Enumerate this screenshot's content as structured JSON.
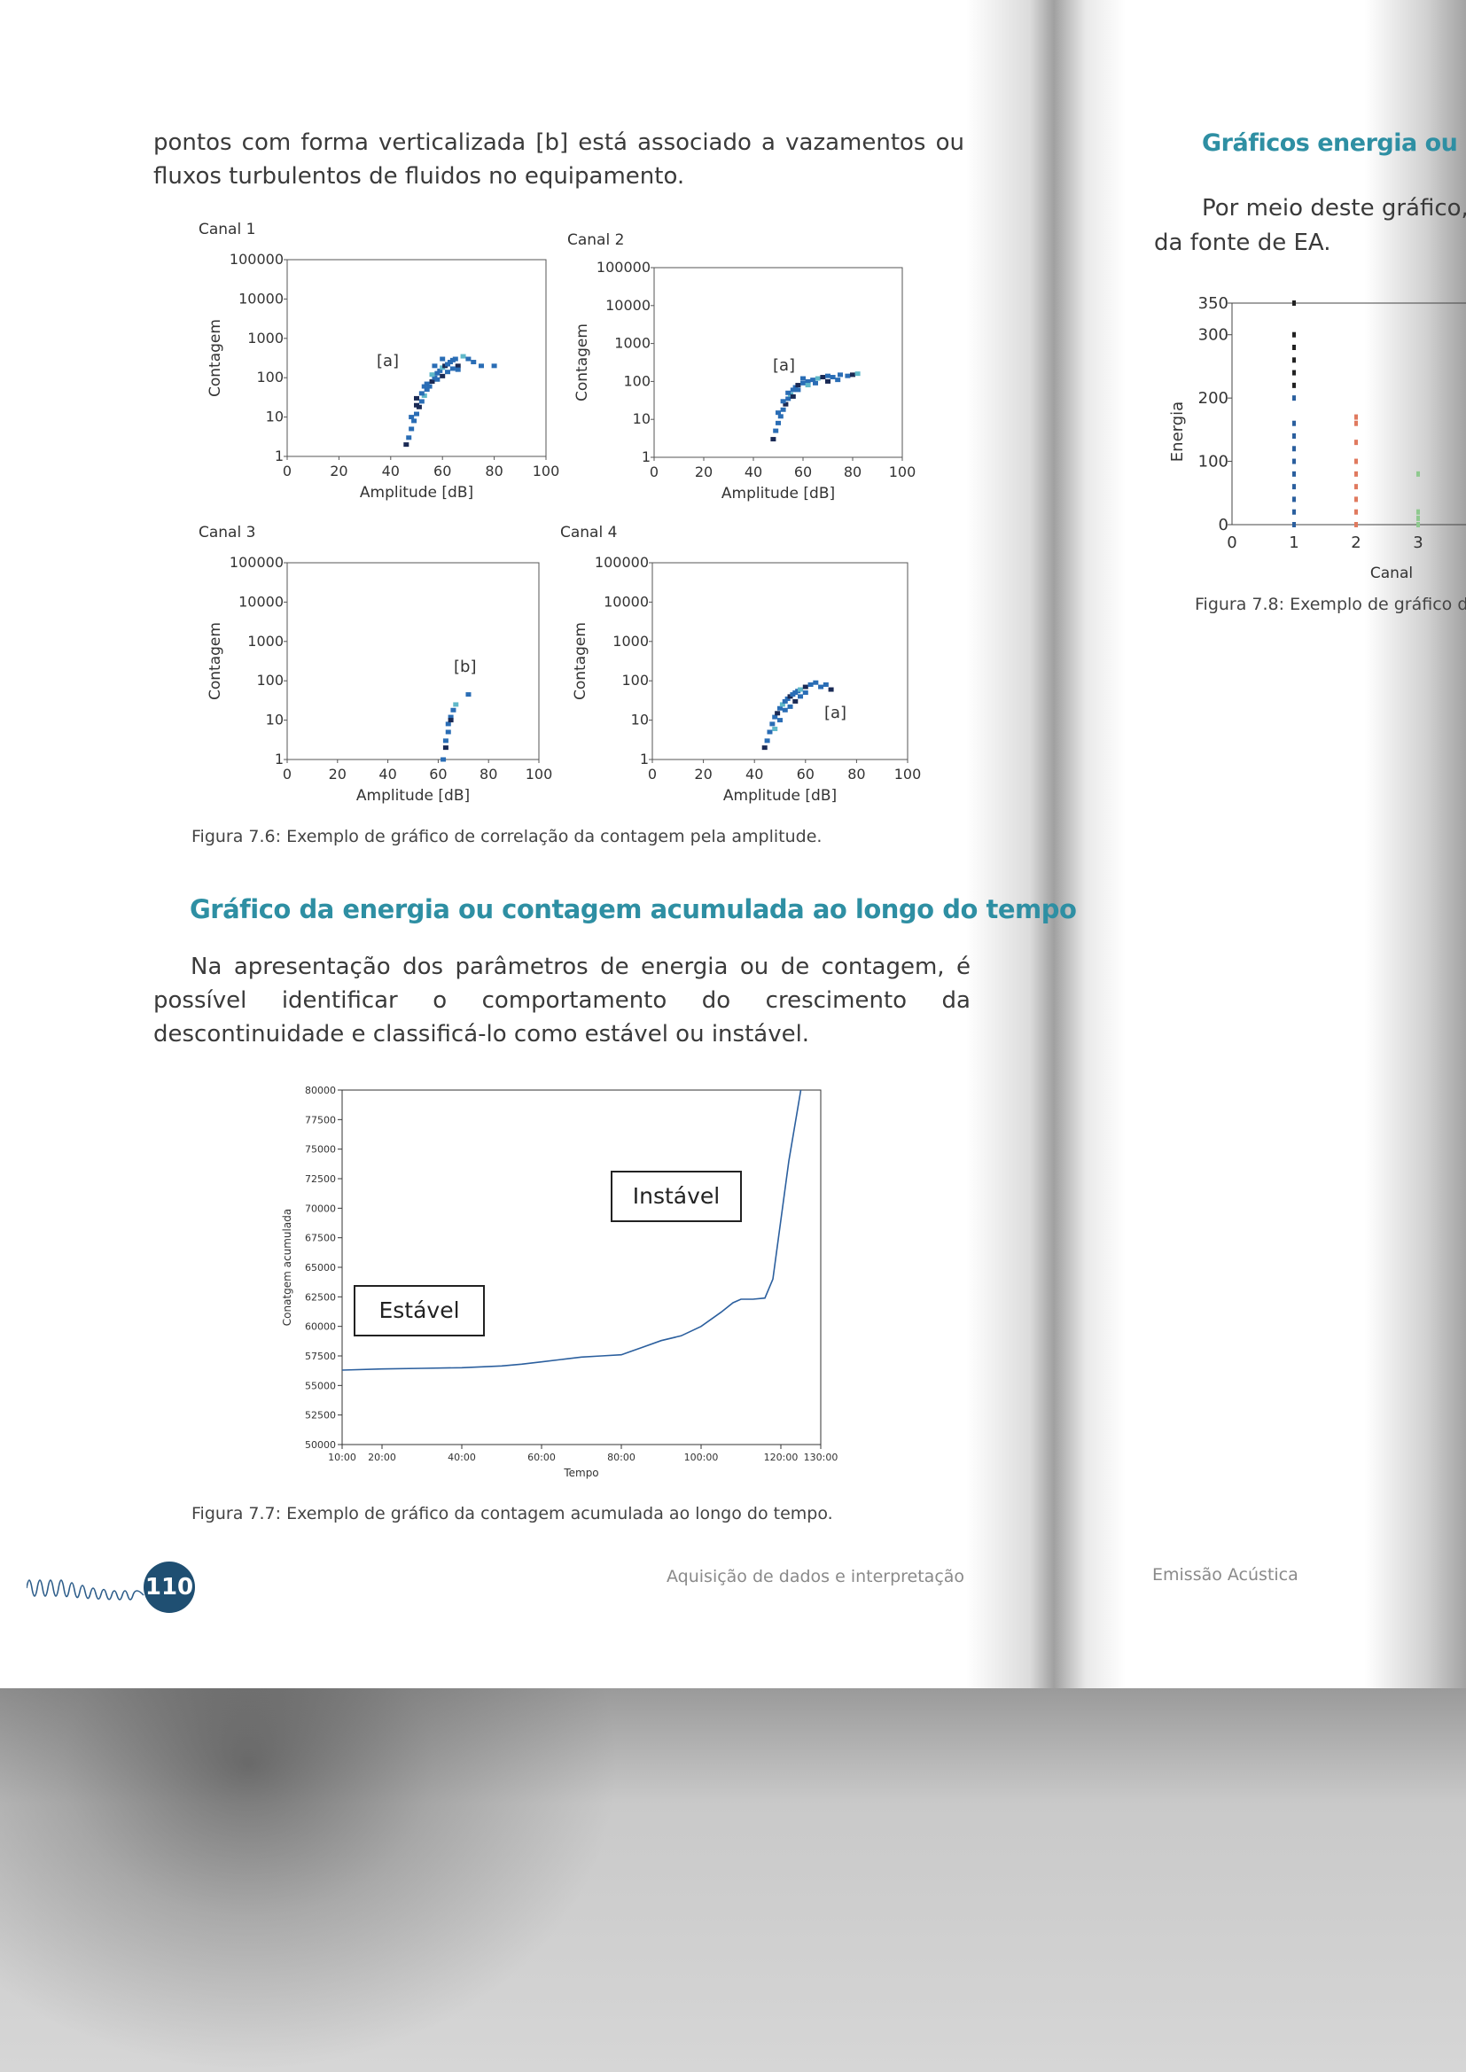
{
  "left_page": {
    "intro_text": "pontos com forma verticalizada [b] está associado a vazamentos ou fluxos turbulentos de fluidos no equipamento.",
    "figure_6": {
      "caption": "Figura 7.6: Exemplo de gráfico de correlação da contagem pela amplitude."
    },
    "section_heading": "Gráfico da energia ou contagem acumulada ao longo do tempo",
    "section_text": "Na apresentação dos parâmetros de energia ou de contagem, é possível identificar o comportamento do crescimento da descontinuidade e classificá-lo como estável ou instável.",
    "figure_7": {
      "caption": "Figura 7.7: Exemplo de gráfico da contagem acumulada ao longo do tempo."
    },
    "page_number": "110",
    "footer": "Aquisição de dados e interpretação"
  },
  "right_page": {
    "heading": "Gráficos energia ou am",
    "text_line1": "Por meio deste gráfico,",
    "text_line2": "da fonte de EA.",
    "figure_8": {
      "caption": "Figura 7.8: Exemplo de gráfico d"
    },
    "footer": "Emissão Acústica"
  },
  "colors": {
    "heading": "#2e8fa3",
    "scatter_dark": "#1a2a55",
    "scatter_mid": "#2a6db5",
    "scatter_light": "#5fb8c9",
    "line": "#2b5f9e",
    "badge": "#1f4f72",
    "canal2_bar": "#e07a5f",
    "canal3_bar": "#8fc98f"
  },
  "chart_data": [
    {
      "type": "scatter",
      "title": "Canal 1",
      "xlabel": "Amplitude [dB]",
      "ylabel": "Contagem",
      "xlim": [
        0,
        100
      ],
      "ylim": [
        1,
        100000
      ],
      "yscale": "log",
      "xticks": [
        "0",
        "20",
        "40",
        "60",
        "80",
        "100"
      ],
      "yticks": [
        "1",
        "10",
        "100",
        "1000",
        "10000",
        "100000"
      ],
      "annotation": "[a]",
      "points": [
        [
          46,
          2
        ],
        [
          47,
          3
        ],
        [
          48,
          5
        ],
        [
          49,
          8
        ],
        [
          50,
          12
        ],
        [
          51,
          18
        ],
        [
          52,
          25
        ],
        [
          53,
          35
        ],
        [
          54,
          50
        ],
        [
          55,
          60
        ],
        [
          56,
          80
        ],
        [
          57,
          100
        ],
        [
          58,
          130
        ],
        [
          59,
          150
        ],
        [
          60,
          180
        ],
        [
          61,
          200
        ],
        [
          62,
          220
        ],
        [
          63,
          250
        ],
        [
          64,
          280
        ],
        [
          65,
          300
        ],
        [
          66,
          200
        ],
        [
          68,
          350
        ],
        [
          70,
          300
        ],
        [
          72,
          250
        ],
        [
          75,
          200
        ],
        [
          50,
          20
        ],
        [
          52,
          40
        ],
        [
          54,
          70
        ],
        [
          56,
          120
        ],
        [
          58,
          90
        ],
        [
          60,
          110
        ],
        [
          62,
          140
        ],
        [
          64,
          170
        ],
        [
          66,
          160
        ],
        [
          48,
          10
        ],
        [
          50,
          30
        ],
        [
          53,
          60
        ],
        [
          57,
          200
        ],
        [
          60,
          300
        ],
        [
          80,
          200
        ]
      ]
    },
    {
      "type": "scatter",
      "title": "Canal 2",
      "xlabel": "Amplitude [dB]",
      "ylabel": "Contagem",
      "xlim": [
        0,
        100
      ],
      "ylim": [
        1,
        100000
      ],
      "yscale": "log",
      "xticks": [
        "0",
        "20",
        "40",
        "60",
        "80",
        "100"
      ],
      "yticks": [
        "1",
        "10",
        "100",
        "1000",
        "10000",
        "100000"
      ],
      "annotation": "[a]",
      "points": [
        [
          48,
          3
        ],
        [
          49,
          5
        ],
        [
          50,
          8
        ],
        [
          51,
          12
        ],
        [
          52,
          18
        ],
        [
          53,
          25
        ],
        [
          54,
          35
        ],
        [
          55,
          45
        ],
        [
          56,
          60
        ],
        [
          57,
          70
        ],
        [
          58,
          80
        ],
        [
          60,
          90
        ],
        [
          62,
          100
        ],
        [
          64,
          110
        ],
        [
          66,
          120
        ],
        [
          68,
          130
        ],
        [
          70,
          140
        ],
        [
          72,
          130
        ],
        [
          75,
          150
        ],
        [
          78,
          140
        ],
        [
          80,
          150
        ],
        [
          82,
          160
        ],
        [
          50,
          15
        ],
        [
          52,
          30
        ],
        [
          54,
          50
        ],
        [
          56,
          40
        ],
        [
          58,
          60
        ],
        [
          60,
          120
        ],
        [
          62,
          80
        ],
        [
          65,
          90
        ],
        [
          70,
          100
        ],
        [
          74,
          110
        ]
      ]
    },
    {
      "type": "scatter",
      "title": "Canal 3",
      "xlabel": "Amplitude [dB]",
      "ylabel": "Contagem",
      "xlim": [
        0,
        100
      ],
      "ylim": [
        1,
        100000
      ],
      "yscale": "log",
      "xticks": [
        "0",
        "20",
        "40",
        "60",
        "80",
        "100"
      ],
      "yticks": [
        "1",
        "10",
        "100",
        "1000",
        "10000",
        "100000"
      ],
      "annotation": "[b]",
      "points": [
        [
          63,
          2
        ],
        [
          63,
          3
        ],
        [
          64,
          5
        ],
        [
          64,
          8
        ],
        [
          65,
          12
        ],
        [
          65,
          10
        ],
        [
          66,
          18
        ],
        [
          67,
          25
        ],
        [
          72,
          45
        ],
        [
          62,
          1
        ]
      ]
    },
    {
      "type": "scatter",
      "title": "Canal 4",
      "xlabel": "Amplitude [dB]",
      "ylabel": "Contagem",
      "xlim": [
        0,
        100
      ],
      "ylim": [
        1,
        100000
      ],
      "yscale": "log",
      "xticks": [
        "0",
        "20",
        "40",
        "60",
        "80",
        "100"
      ],
      "yticks": [
        "1",
        "10",
        "100",
        "1000",
        "10000",
        "100000"
      ],
      "annotation": "[a]",
      "points": [
        [
          44,
          2
        ],
        [
          45,
          3
        ],
        [
          46,
          5
        ],
        [
          47,
          8
        ],
        [
          48,
          12
        ],
        [
          49,
          15
        ],
        [
          50,
          20
        ],
        [
          51,
          25
        ],
        [
          52,
          30
        ],
        [
          53,
          35
        ],
        [
          54,
          40
        ],
        [
          55,
          45
        ],
        [
          56,
          50
        ],
        [
          57,
          55
        ],
        [
          58,
          60
        ],
        [
          60,
          70
        ],
        [
          62,
          80
        ],
        [
          64,
          90
        ],
        [
          66,
          70
        ],
        [
          68,
          80
        ],
        [
          70,
          60
        ],
        [
          48,
          6
        ],
        [
          50,
          10
        ],
        [
          52,
          18
        ],
        [
          54,
          22
        ],
        [
          56,
          30
        ],
        [
          58,
          40
        ],
        [
          60,
          50
        ]
      ]
    },
    {
      "type": "line",
      "xlabel": "Tempo",
      "ylabel": "Conatgem acumulada",
      "xlim": [
        10,
        130
      ],
      "ylim": [
        50000,
        80000
      ],
      "xticks": [
        "10:00",
        "20:00",
        "40:00",
        "60:00",
        "80:00",
        "100:00",
        "120:00",
        "130:00"
      ],
      "yticks": [
        "50000",
        "52500",
        "55000",
        "57500",
        "60000",
        "62500",
        "65000",
        "67500",
        "70000",
        "72500",
        "75000",
        "77500",
        "80000"
      ],
      "annotations": [
        "Estável",
        "Instável"
      ],
      "x": [
        10,
        20,
        30,
        40,
        50,
        55,
        60,
        65,
        70,
        75,
        80,
        85,
        90,
        95,
        100,
        105,
        108,
        110,
        113,
        116,
        118,
        120,
        122,
        124,
        125
      ],
      "y": [
        56300,
        56400,
        56450,
        56500,
        56650,
        56800,
        57000,
        57200,
        57400,
        57500,
        57600,
        58200,
        58800,
        59200,
        60000,
        61200,
        62000,
        62300,
        62300,
        62400,
        64000,
        69000,
        74000,
        78000,
        80000
      ]
    },
    {
      "type": "scatter",
      "xlabel": "Canal",
      "ylabel": "Energia",
      "xlim": [
        0,
        3
      ],
      "ylim": [
        0,
        350
      ],
      "xticks": [
        "0",
        "1",
        "2",
        "3"
      ],
      "yticks": [
        "0",
        "100",
        "200",
        "300",
        "350"
      ],
      "series": [
        {
          "x": 1,
          "values": [
            0,
            20,
            40,
            60,
            80,
            100,
            120,
            140,
            160,
            200,
            220,
            240,
            260,
            280,
            300,
            350
          ]
        },
        {
          "x": 2,
          "values": [
            0,
            20,
            40,
            60,
            80,
            100,
            130,
            160,
            170
          ]
        },
        {
          "x": 3,
          "values": [
            0,
            10,
            20,
            80
          ]
        }
      ]
    }
  ]
}
